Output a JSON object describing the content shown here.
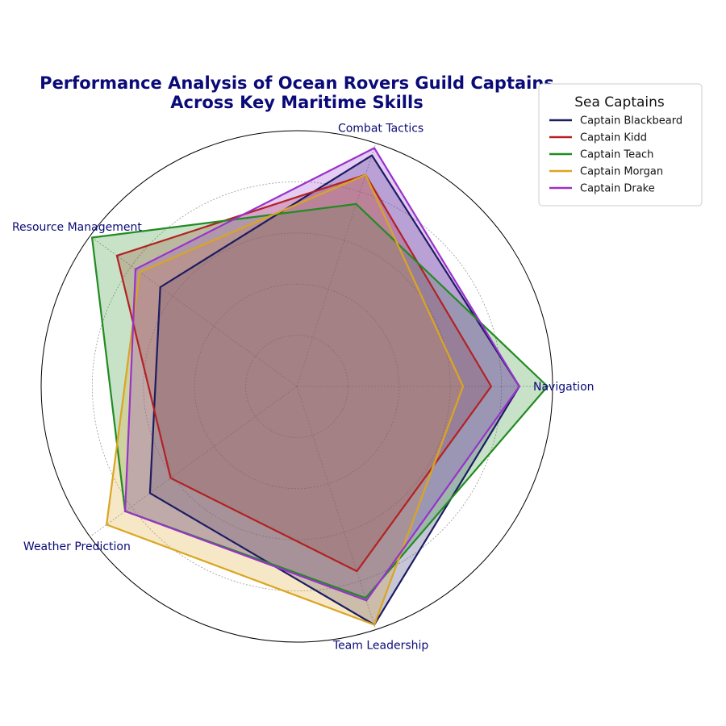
{
  "chart_data": {
    "type": "radar",
    "title_lines": [
      "Performance Analysis of Ocean Rovers Guild Captains",
      "Across Key Maritime Skills"
    ],
    "axes": [
      "Navigation",
      "Combat Tactics",
      "Resource Management",
      "Weather Prediction",
      "Team Leadership"
    ],
    "rmax": 100,
    "grid": true,
    "legend_title": "Sea Captains",
    "legend_position": "top-right",
    "series": [
      {
        "name": "Captain Blackbeard",
        "color": "#1c1c62",
        "values": [
          87,
          95,
          66,
          71,
          98
        ]
      },
      {
        "name": "Captain Kidd",
        "color": "#b22222",
        "values": [
          76,
          87,
          87,
          61,
          76
        ]
      },
      {
        "name": "Captain Teach",
        "color": "#228b22",
        "values": [
          98,
          75,
          99,
          83,
          87
        ]
      },
      {
        "name": "Captain Morgan",
        "color": "#daa520",
        "values": [
          65,
          87,
          76,
          92,
          98
        ]
      },
      {
        "name": "Captain Drake",
        "color": "#9932cc",
        "values": [
          87,
          98,
          78,
          83,
          88
        ]
      }
    ]
  }
}
